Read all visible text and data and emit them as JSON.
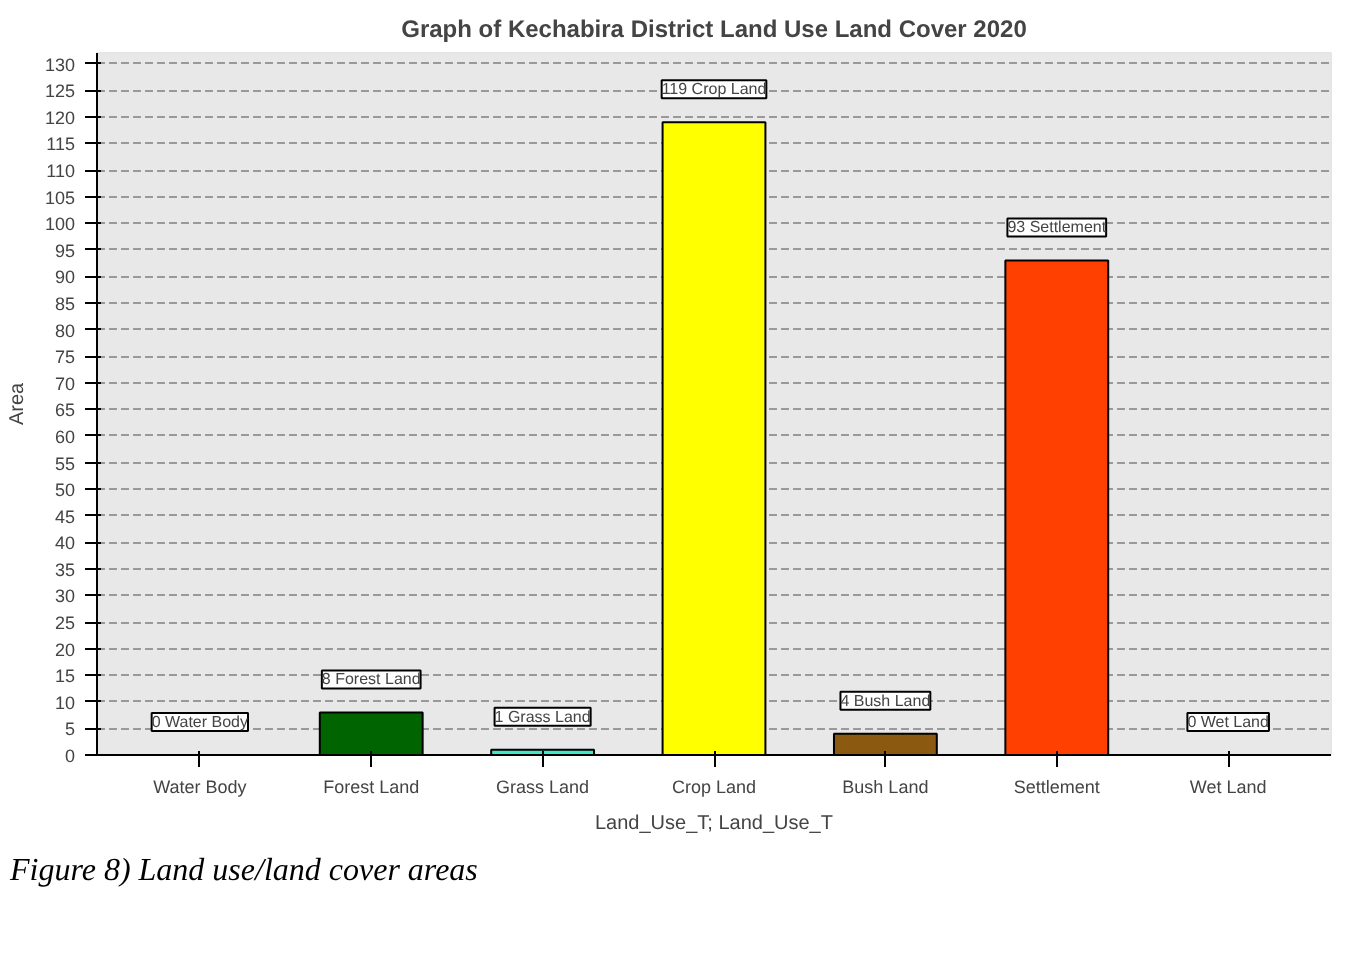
{
  "chart_data": {
    "type": "bar",
    "title": "Graph of Kechabira District Land Use Land Cover 2020",
    "xlabel": "Land_Use_T; Land_Use_T",
    "ylabel": "Area",
    "categories": [
      "Water Body",
      "Forest Land",
      "Grass Land",
      "Crop Land",
      "Bush Land",
      "Settlement",
      "Wet Land"
    ],
    "values": [
      0,
      8,
      1,
      119,
      4,
      93,
      0
    ],
    "colors": [
      null,
      "#006400",
      "#40e8c8",
      "#ffff00",
      "#8b5a10",
      "#ff4000",
      null
    ],
    "value_labels": [
      "0 Water Body",
      "8 Forest Land",
      "1 Grass Land",
      "119 Crop Land",
      "4 Bush Land",
      "93 Settlement",
      "0 Wet Land"
    ],
    "ylim": [
      0,
      132
    ],
    "yticks": [
      0,
      5,
      10,
      15,
      20,
      25,
      30,
      35,
      40,
      45,
      50,
      55,
      60,
      65,
      70,
      75,
      80,
      85,
      90,
      95,
      100,
      105,
      110,
      115,
      120,
      125,
      130
    ],
    "grid": "y",
    "annotations": [
      "Figure 8) Land use/land cover areas"
    ]
  }
}
